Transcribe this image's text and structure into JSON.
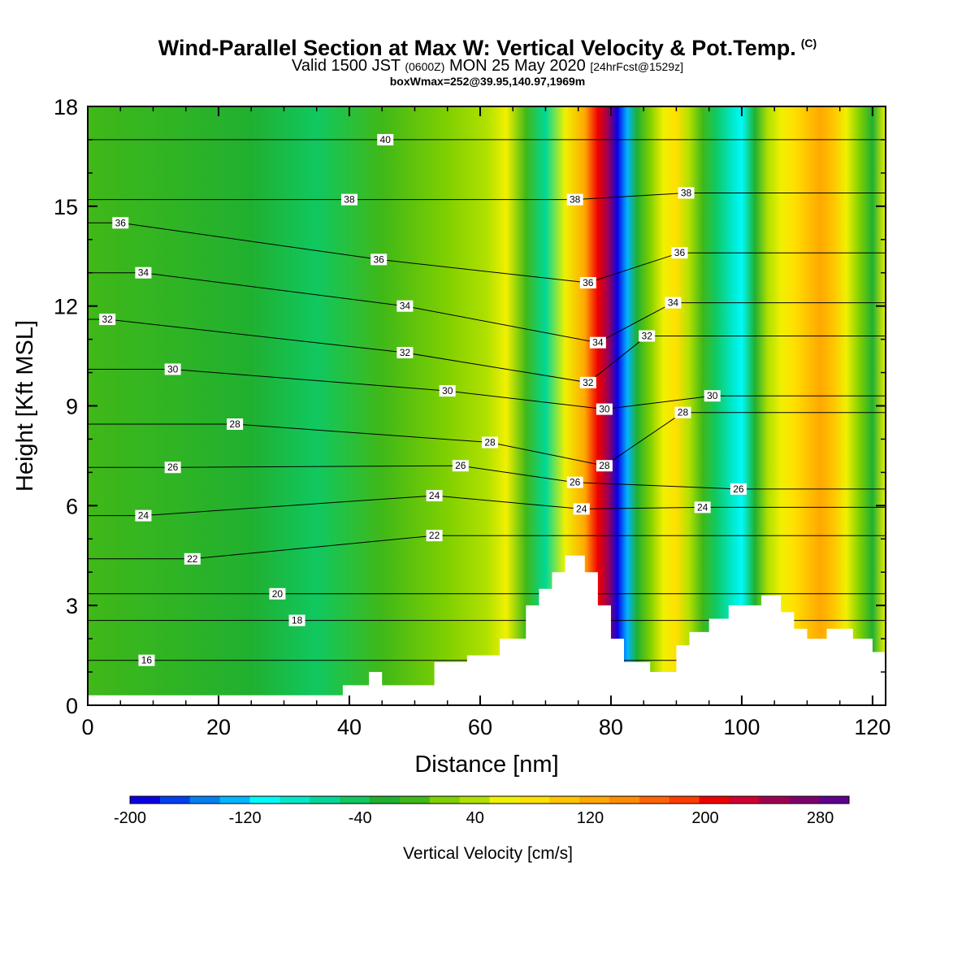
{
  "header": {
    "title": "Wind-Parallel Section at Max W: Vertical Velocity & Pot.Temp.",
    "copyright": "(C)",
    "valid_prefix": "Valid 1500 JST",
    "valid_utc": "(0600Z)",
    "valid_date": "MON 25 May 2020",
    "forecast_tag": "[24hrFcst@1529z]",
    "box_info": "boxWmax=252@39.95,140.97,1969m"
  },
  "chart_data": {
    "type": "heatmap",
    "title": "Wind-Parallel Section at Max W: Vertical Velocity & Pot.Temp.",
    "xlabel": "Distance [nm]",
    "ylabel": "Height [Kft MSL]",
    "xlim": [
      0,
      122
    ],
    "ylim": [
      0,
      18
    ],
    "x_ticks": [
      "0",
      "20",
      "40",
      "60",
      "80",
      "100",
      "120"
    ],
    "y_ticks": [
      "0",
      "3",
      "6",
      "9",
      "12",
      "15",
      "18"
    ],
    "terrain": {
      "x": [
        0,
        39,
        39,
        43,
        43,
        45,
        45,
        53,
        53,
        58,
        58,
        63,
        63,
        67,
        67,
        69,
        69,
        71,
        71,
        73,
        73,
        76,
        76,
        78,
        78,
        80,
        80,
        82,
        82,
        86,
        86,
        90,
        90,
        92,
        92,
        95,
        95,
        98,
        98,
        103,
        103,
        106,
        106,
        108,
        108,
        110,
        110,
        113,
        113,
        117,
        117,
        120,
        120,
        122
      ],
      "height": [
        0.3,
        0.3,
        0.6,
        0.6,
        1.0,
        1.0,
        0.6,
        0.6,
        1.3,
        1.3,
        1.5,
        1.5,
        2.0,
        2.0,
        3.0,
        3.0,
        3.5,
        3.5,
        4.0,
        4.0,
        4.5,
        4.5,
        4.0,
        4.0,
        3.0,
        3.0,
        2.0,
        2.0,
        1.3,
        1.3,
        1.0,
        1.0,
        1.8,
        1.8,
        2.2,
        2.2,
        2.6,
        2.6,
        3.0,
        3.0,
        3.3,
        3.3,
        2.8,
        2.8,
        2.3,
        2.3,
        2.0,
        2.0,
        2.3,
        2.3,
        2.0,
        2.0,
        1.6,
        1.6
      ]
    },
    "vertical_velocity_bands": [
      {
        "x": 0,
        "w": 5
      },
      {
        "x": 25,
        "w": -18
      },
      {
        "x": 35,
        "w": -35
      },
      {
        "x": 45,
        "w": -10
      },
      {
        "x": 55,
        "w": 20
      },
      {
        "x": 61,
        "w": 35
      },
      {
        "x": 64,
        "w": 55
      },
      {
        "x": 67,
        "w": 5
      },
      {
        "x": 70,
        "w": -75
      },
      {
        "x": 73,
        "w": 60
      },
      {
        "x": 76,
        "w": 120
      },
      {
        "x": 78,
        "w": 200
      },
      {
        "x": 79.5,
        "w": 250
      },
      {
        "x": 81,
        "w": -190
      },
      {
        "x": 82.5,
        "w": -120
      },
      {
        "x": 84,
        "w": -20
      },
      {
        "x": 86,
        "w": 25
      },
      {
        "x": 88,
        "w": 60
      },
      {
        "x": 90,
        "w": 80
      },
      {
        "x": 92,
        "w": 40
      },
      {
        "x": 94,
        "w": -10
      },
      {
        "x": 96,
        "w": -40
      },
      {
        "x": 98.5,
        "w": -80
      },
      {
        "x": 100,
        "w": -100
      },
      {
        "x": 102,
        "w": -20
      },
      {
        "x": 104,
        "w": 40
      },
      {
        "x": 106,
        "w": 60
      },
      {
        "x": 108,
        "w": 80
      },
      {
        "x": 110,
        "w": 100
      },
      {
        "x": 112,
        "w": 120
      },
      {
        "x": 114,
        "w": 100
      },
      {
        "x": 116,
        "w": 60
      },
      {
        "x": 118,
        "w": 10
      },
      {
        "x": 120,
        "w": -30
      },
      {
        "x": 122,
        "w": 50
      }
    ],
    "potential_temperature_labels": [
      {
        "x": 5,
        "y": 14.5,
        "text": "36"
      },
      {
        "x": 8.5,
        "y": 13.0,
        "text": "34"
      },
      {
        "x": 3,
        "y": 11.6,
        "text": "32"
      },
      {
        "x": 13,
        "y": 10.1,
        "text": "30"
      },
      {
        "x": 22.5,
        "y": 8.45,
        "text": "28"
      },
      {
        "x": 13,
        "y": 7.15,
        "text": "26"
      },
      {
        "x": 8.5,
        "y": 5.7,
        "text": "24"
      },
      {
        "x": 16,
        "y": 4.4,
        "text": "22"
      },
      {
        "x": 29,
        "y": 3.35,
        "text": "20"
      },
      {
        "x": 32,
        "y": 2.55,
        "text": "18"
      },
      {
        "x": 9,
        "y": 1.35,
        "text": "16"
      },
      {
        "x": 45.5,
        "y": 17.0,
        "text": "40"
      },
      {
        "x": 40,
        "y": 15.2,
        "text": "38"
      },
      {
        "x": 44.5,
        "y": 13.4,
        "text": "36"
      },
      {
        "x": 48.5,
        "y": 12.0,
        "text": "34"
      },
      {
        "x": 48.5,
        "y": 10.6,
        "text": "32"
      },
      {
        "x": 55,
        "y": 9.45,
        "text": "30"
      },
      {
        "x": 61.5,
        "y": 7.9,
        "text": "28"
      },
      {
        "x": 57,
        "y": 7.2,
        "text": "26"
      },
      {
        "x": 53,
        "y": 6.3,
        "text": "24"
      },
      {
        "x": 53,
        "y": 5.1,
        "text": "22"
      },
      {
        "x": 74.5,
        "y": 15.2,
        "text": "38"
      },
      {
        "x": 76.5,
        "y": 12.7,
        "text": "36"
      },
      {
        "x": 78,
        "y": 10.9,
        "text": "34"
      },
      {
        "x": 76.5,
        "y": 9.7,
        "text": "32"
      },
      {
        "x": 79,
        "y": 8.9,
        "text": "30"
      },
      {
        "x": 79,
        "y": 7.2,
        "text": "28"
      },
      {
        "x": 74.5,
        "y": 6.7,
        "text": "26"
      },
      {
        "x": 75.5,
        "y": 5.9,
        "text": "24"
      },
      {
        "x": 91.5,
        "y": 15.4,
        "text": "38"
      },
      {
        "x": 90.5,
        "y": 13.6,
        "text": "36"
      },
      {
        "x": 89.5,
        "y": 12.1,
        "text": "34"
      },
      {
        "x": 85.5,
        "y": 11.1,
        "text": "32"
      },
      {
        "x": 95.5,
        "y": 9.3,
        "text": "30"
      },
      {
        "x": 91,
        "y": 8.8,
        "text": "28"
      },
      {
        "x": 99.5,
        "y": 6.5,
        "text": "26"
      },
      {
        "x": 94,
        "y": 5.95,
        "text": "24"
      }
    ],
    "colorbar": {
      "title": "Vertical Velocity [cm/s]",
      "labels": [
        "-200",
        "-120",
        "-40",
        "40",
        "120",
        "200",
        "280"
      ],
      "range": [
        -200,
        300
      ],
      "colors": [
        "#0a00e6",
        "#0040f0",
        "#0080f0",
        "#00b6ff",
        "#00fafa",
        "#00e8c8",
        "#00d898",
        "#10c860",
        "#20b030",
        "#40b818",
        "#80d000",
        "#b0e000",
        "#f0f000",
        "#ffe000",
        "#ffc400",
        "#ffa800",
        "#ff8c00",
        "#ff6400",
        "#ff3c00",
        "#f00000",
        "#d00030",
        "#a00050",
        "#800070",
        "#600090"
      ]
    }
  }
}
